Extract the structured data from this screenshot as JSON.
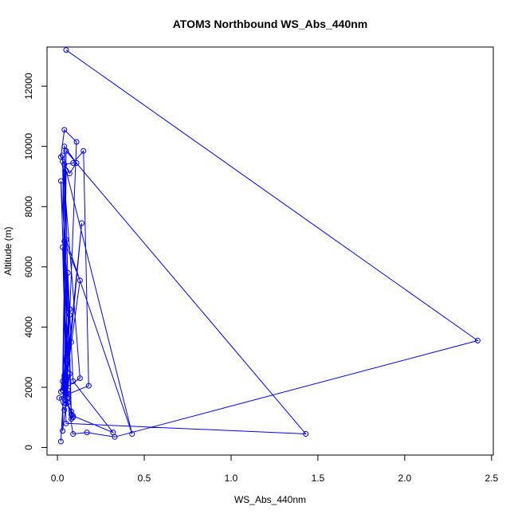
{
  "chart_data": {
    "type": "line",
    "title": "ATOM3 Northbound WS_Abs_440nm",
    "xlabel": "WS_Abs_440nm",
    "ylabel": "Altitude (m)",
    "xlim": [
      -0.06,
      2.51
    ],
    "ylim": [
      -250,
      13300
    ],
    "xticks": [
      0.0,
      0.5,
      1.0,
      1.5,
      2.0,
      2.5
    ],
    "xtick_labels": [
      "0.0",
      "0.5",
      "1.0",
      "1.5",
      "2.0",
      "2.5"
    ],
    "yticks": [
      0,
      2000,
      4000,
      6000,
      8000,
      10000,
      12000
    ],
    "ytick_labels": [
      "0",
      "2000",
      "4000",
      "6000",
      "8000",
      "10000",
      "12000"
    ],
    "grid": false,
    "legend": "none",
    "marker": "open-circle",
    "color": "#0000ff",
    "series": [
      {
        "x": [
          0.02,
          0.04,
          0.06,
          0.05,
          0.09,
          0.08,
          0.05,
          0.04,
          0.07,
          0.03,
          0.06,
          0.05,
          0.14,
          0.06,
          0.08,
          0.05,
          0.03,
          0.07,
          0.02,
          0.06,
          0.04,
          0.13,
          0.05,
          0.07,
          0.02,
          0.06,
          0.04,
          0.09,
          0.15,
          0.18,
          0.01,
          0.04,
          0.06,
          0.08,
          0.04,
          0.11,
          0.07,
          0.02,
          0.04,
          0.11,
          0.05,
          0.07,
          0.03,
          0.05,
          0.43,
          0.05,
          0.04,
          0.06,
          0.09,
          0.32,
          0.09,
          0.08,
          0.03,
          0.05,
          0.04,
          0.05,
          1.43,
          0.05,
          0.03,
          0.04,
          0.13,
          0.03,
          0.05,
          0.09,
          0.17,
          0.33,
          2.42,
          0.05
        ],
        "y": [
          200,
          2350,
          1650,
          2150,
          1000,
          1200,
          1550,
          2400,
          4600,
          1900,
          1800,
          2300,
          7450,
          2500,
          3500,
          2200,
          6650,
          4600,
          1850,
          2900,
          6850,
          5550,
          2200,
          4400,
          8850,
          1900,
          9400,
          9450,
          9850,
          2050,
          1650,
          1250,
          1500,
          1100,
          10000,
          9450,
          9100,
          9650,
          10550,
          10150,
          1450,
          2450,
          550,
          9200,
          450,
          6900,
          1600,
          5800,
          2200,
          500,
          1050,
          950,
          9700,
          2300,
          2150,
          800,
          450,
          9850,
          2200,
          1950,
          2300,
          9500,
          1800,
          450,
          500,
          350,
          3550,
          13200
        ]
      }
    ]
  }
}
